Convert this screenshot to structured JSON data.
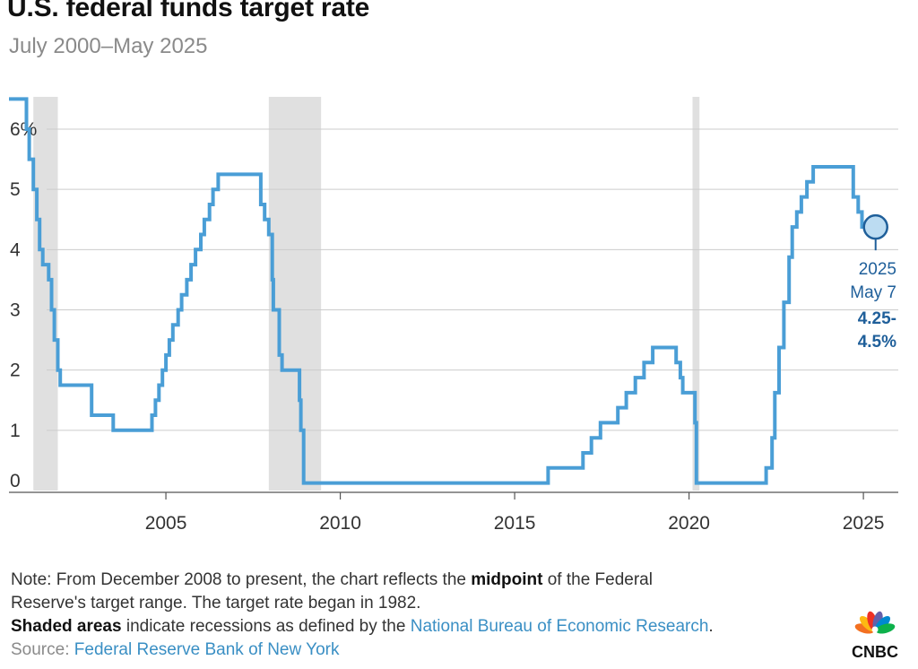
{
  "header": {
    "title": "U.S. federal funds target rate",
    "subtitle": "July 2000–May 2025"
  },
  "chart_data": {
    "type": "line",
    "title": "U.S. federal funds target rate",
    "subtitle": "July 2000–May 2025",
    "xlabel": "",
    "ylabel": "",
    "xlim": [
      2000.5,
      2026.0
    ],
    "ylim": [
      0,
      6.5
    ],
    "x_ticks": [
      2005,
      2010,
      2015,
      2020,
      2025
    ],
    "x_tick_labels": [
      "2005",
      "2010",
      "2015",
      "2020",
      "2025"
    ],
    "y_ticks": [
      0,
      1,
      2,
      3,
      4,
      5,
      6
    ],
    "y_tick_labels": [
      "0",
      "1",
      "2",
      "3",
      "4",
      "5",
      "6%"
    ],
    "grid": "horizontal",
    "recessions": [
      [
        2001.2,
        2001.9
      ],
      [
        2007.95,
        2009.45
      ],
      [
        2020.1,
        2020.3
      ]
    ],
    "series": [
      {
        "color": "#4a9ed6",
        "points": [
          [
            2000.5,
            6.5
          ],
          [
            2001.0,
            6.5
          ],
          [
            2001.0,
            6.0
          ],
          [
            2001.08,
            5.5
          ],
          [
            2001.2,
            5.0
          ],
          [
            2001.3,
            4.5
          ],
          [
            2001.38,
            4.0
          ],
          [
            2001.47,
            3.75
          ],
          [
            2001.64,
            3.5
          ],
          [
            2001.72,
            3.0
          ],
          [
            2001.8,
            2.5
          ],
          [
            2001.9,
            2.0
          ],
          [
            2001.97,
            1.75
          ],
          [
            2002.87,
            1.75
          ],
          [
            2002.87,
            1.25
          ],
          [
            2003.49,
            1.25
          ],
          [
            2003.49,
            1.0
          ],
          [
            2004.49,
            1.0
          ],
          [
            2004.6,
            1.25
          ],
          [
            2004.7,
            1.5
          ],
          [
            2004.8,
            1.75
          ],
          [
            2004.9,
            2.0
          ],
          [
            2005.0,
            2.25
          ],
          [
            2005.1,
            2.5
          ],
          [
            2005.2,
            2.75
          ],
          [
            2005.35,
            3.0
          ],
          [
            2005.45,
            3.25
          ],
          [
            2005.6,
            3.5
          ],
          [
            2005.72,
            3.75
          ],
          [
            2005.85,
            4.0
          ],
          [
            2006.0,
            4.25
          ],
          [
            2006.1,
            4.5
          ],
          [
            2006.25,
            4.75
          ],
          [
            2006.35,
            5.0
          ],
          [
            2006.5,
            5.25
          ],
          [
            2007.72,
            5.25
          ],
          [
            2007.72,
            4.75
          ],
          [
            2007.83,
            4.5
          ],
          [
            2007.95,
            4.25
          ],
          [
            2008.05,
            3.5
          ],
          [
            2008.08,
            3.0
          ],
          [
            2008.25,
            2.25
          ],
          [
            2008.33,
            2.0
          ],
          [
            2008.78,
            2.0
          ],
          [
            2008.83,
            1.5
          ],
          [
            2008.87,
            1.0
          ],
          [
            2008.95,
            0.125
          ],
          [
            2015.96,
            0.125
          ],
          [
            2015.96,
            0.375
          ],
          [
            2016.96,
            0.375
          ],
          [
            2016.96,
            0.625
          ],
          [
            2017.2,
            0.875
          ],
          [
            2017.46,
            1.125
          ],
          [
            2017.96,
            1.375
          ],
          [
            2018.2,
            1.625
          ],
          [
            2018.46,
            1.875
          ],
          [
            2018.71,
            2.125
          ],
          [
            2018.96,
            2.375
          ],
          [
            2019.55,
            2.375
          ],
          [
            2019.63,
            2.125
          ],
          [
            2019.75,
            1.875
          ],
          [
            2019.82,
            1.625
          ],
          [
            2020.17,
            1.625
          ],
          [
            2020.17,
            1.125
          ],
          [
            2020.21,
            0.125
          ],
          [
            2022.21,
            0.125
          ],
          [
            2022.21,
            0.375
          ],
          [
            2022.38,
            0.875
          ],
          [
            2022.46,
            1.625
          ],
          [
            2022.58,
            2.375
          ],
          [
            2022.72,
            3.125
          ],
          [
            2022.87,
            3.875
          ],
          [
            2022.96,
            4.375
          ],
          [
            2023.09,
            4.625
          ],
          [
            2023.22,
            4.875
          ],
          [
            2023.38,
            5.125
          ],
          [
            2023.56,
            5.375
          ],
          [
            2024.71,
            5.375
          ],
          [
            2024.71,
            4.875
          ],
          [
            2024.85,
            4.625
          ],
          [
            2024.96,
            4.375
          ],
          [
            2025.35,
            4.375
          ]
        ]
      }
    ],
    "annotation": {
      "x": 2025.35,
      "y": 4.375,
      "line1": "2025",
      "line2": "May 7",
      "line3": "4.25-",
      "line4": "4.5%"
    }
  },
  "footer": {
    "note_prefix": "Note: From December 2008 to present, the chart reflects the",
    "note_bold": "midpoint",
    "note_suffix": "of the Federal",
    "note_line2": "Reserve's target range. The target rate began in 1982.",
    "shaded_bold": "Shaded areas",
    "shaded_text": "indicate recessions as defined by the",
    "shaded_link": "National Bureau of Economic Research",
    "shaded_end": ".",
    "source_label": "Source:",
    "source_link": "Federal Reserve Bank of New York",
    "logo_text": "CNBC",
    "colors": {
      "line": "#4a9ed6",
      "recession": "#e0e0e0",
      "grid": "#cccccc",
      "link": "#3a8fc4",
      "callout": "#1f5f9a"
    }
  }
}
